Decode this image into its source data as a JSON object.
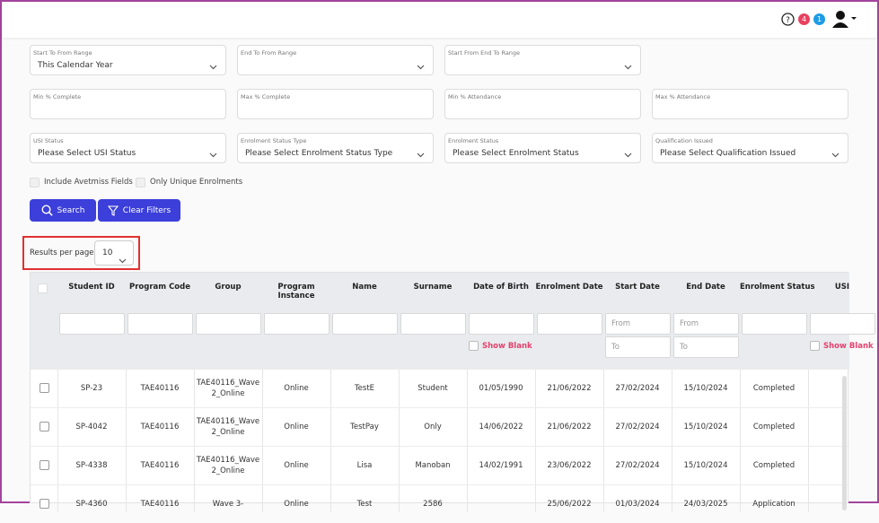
{
  "header": {
    "badges": [
      "4",
      "1"
    ]
  },
  "filters": {
    "rows": [
      [
        {
          "label": "Start To From Range",
          "value": "This Calendar Year",
          "select": true
        },
        {
          "label": "End To From Range",
          "select": true
        },
        {
          "label": "Start From End To Range",
          "select": true
        }
      ],
      [
        {
          "label": "Min % Complete"
        },
        {
          "label": "Max % Complete"
        },
        {
          "label": "Min % Attendance"
        },
        {
          "label": "Max % Attendance"
        }
      ],
      [
        {
          "label": "USI Status",
          "value": "Please Select USI Status",
          "select": true
        },
        {
          "label": "Enrolment Status Type",
          "value": "Please Select Enrolment Status Type",
          "select": true
        },
        {
          "label": "Enrolment Status",
          "value": "Please Select Enrolment Status",
          "select": true
        },
        {
          "label": "Qualification Issued",
          "value": "Please Select Qualification Issued",
          "select": true
        }
      ]
    ]
  },
  "checkboxes": [
    "Include Avetmiss Fields",
    "Only Unique Enrolments"
  ],
  "buttons": {
    "search": "Search",
    "clear": "Clear Filters"
  },
  "results_per_page": {
    "label": "Results per page",
    "value": "10"
  },
  "table": {
    "range_placeholders": [
      "From",
      "To"
    ],
    "show_blank_label": "Show Blank",
    "columns": [
      {
        "title": "Student ID",
        "filter": "text"
      },
      {
        "title": "Program Code",
        "filter": "text"
      },
      {
        "title": "Group",
        "filter": "text"
      },
      {
        "title": "Program Instance",
        "filter": "text"
      },
      {
        "title": "Name",
        "filter": "text"
      },
      {
        "title": "Surname",
        "filter": "text"
      },
      {
        "title": "Date of Birth",
        "filter": "text",
        "show_blank": true
      },
      {
        "title": "Enrolment Date",
        "filter": "text"
      },
      {
        "title": "Start Date",
        "filter": "range"
      },
      {
        "title": "End Date",
        "filter": "range"
      },
      {
        "title": "Enrolment Status",
        "filter": "text"
      },
      {
        "title": "USI",
        "filter": "text",
        "show_blank": true
      }
    ],
    "rows": [
      [
        "SP-23",
        "TAE40116",
        "TAE40116_Wave 2_Online",
        "Online",
        "TestE",
        "Student",
        "01/05/1990",
        "21/06/2022",
        "27/02/2024",
        "15/10/2024",
        "Completed",
        ""
      ],
      [
        "SP-4042",
        "TAE40116",
        "TAE40116_Wave 2_Online",
        "Online",
        "TestPay",
        "Only",
        "14/06/2022",
        "21/06/2022",
        "27/02/2024",
        "15/10/2024",
        "Completed",
        ""
      ],
      [
        "SP-4338",
        "TAE40116",
        "TAE40116_Wave 2_Online",
        "Online",
        "Lisa",
        "Manoban",
        "14/02/1991",
        "23/06/2022",
        "27/02/2024",
        "15/10/2024",
        "Completed",
        ""
      ],
      [
        "SP-4360",
        "TAE40116",
        "Wave 3-",
        "Online",
        "Test",
        "2586",
        "",
        "25/06/2022",
        "01/03/2024",
        "24/03/2025",
        "Application",
        ""
      ]
    ]
  }
}
